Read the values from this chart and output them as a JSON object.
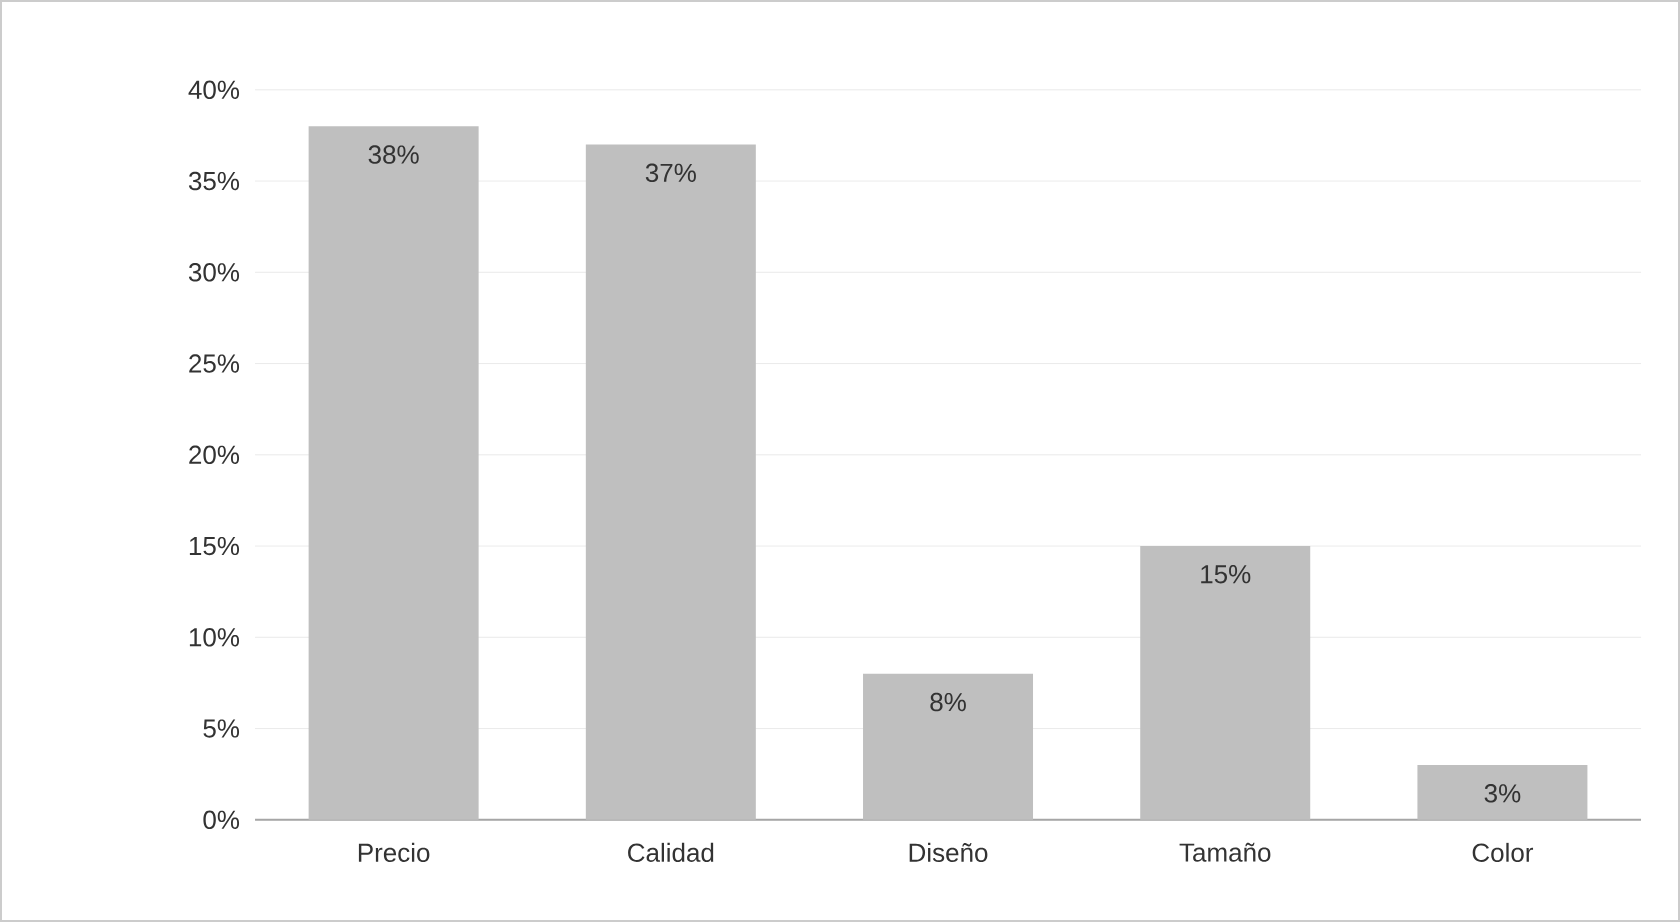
{
  "chart_data": {
    "type": "bar",
    "categories": [
      "Precio",
      "Calidad",
      "Diseño",
      "Tamaño",
      "Color"
    ],
    "values": [
      38,
      37,
      8,
      15,
      3
    ],
    "value_labels": [
      "38%",
      "37%",
      "8%",
      "15%",
      "3%"
    ],
    "color": "#bfbfbf",
    "ylim": [
      0,
      40
    ],
    "yticks": [
      {
        "value": 0,
        "label": "0%"
      },
      {
        "value": 5,
        "label": "5%"
      },
      {
        "value": 10,
        "label": "10%"
      },
      {
        "value": 15,
        "label": "15%"
      },
      {
        "value": 20,
        "label": "20%"
      },
      {
        "value": 25,
        "label": "25%"
      },
      {
        "value": 30,
        "label": "30%"
      },
      {
        "value": 35,
        "label": "35%"
      },
      {
        "value": 40,
        "label": "40%"
      }
    ],
    "grid": "y"
  }
}
